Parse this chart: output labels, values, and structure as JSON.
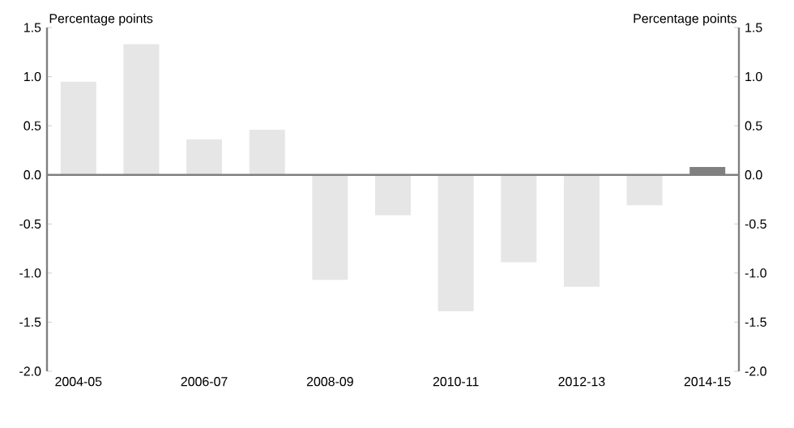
{
  "chart_data": {
    "type": "bar",
    "ylabel": "Percentage points",
    "y2label": "Percentage points",
    "categories": [
      "2004-05",
      null,
      "2006-07",
      null,
      "2008-09",
      null,
      "2010-11",
      null,
      "2012-13",
      null,
      "2014-15"
    ],
    "values": [
      0.95,
      1.33,
      0.36,
      0.46,
      -1.07,
      -0.41,
      -1.39,
      -0.89,
      -1.14,
      -0.31,
      0.08
    ],
    "colors": [
      "#e6e6e6",
      "#e6e6e6",
      "#e6e6e6",
      "#e6e6e6",
      "#e6e6e6",
      "#e6e6e6",
      "#e6e6e6",
      "#e6e6e6",
      "#e6e6e6",
      "#e6e6e6",
      "#808080"
    ],
    "ylim": [
      -2.0,
      1.5
    ],
    "yticks": [
      {
        "value": -2.0,
        "label": "-2.0"
      },
      -1.5,
      {
        "value": -1.0,
        "label": "-1.0"
      },
      -0.5,
      {
        "value": 0,
        "label": "0.0"
      },
      0.5,
      {
        "value": 1.0,
        "label": "1.0"
      },
      1.5
    ],
    "y2lim": [
      -2.0,
      1.5
    ],
    "y2ticks": [
      {
        "value": -2.0,
        "label": "-2.0"
      },
      -1.5,
      {
        "value": -1.0,
        "label": "-1.0"
      },
      -0.5,
      {
        "value": 0,
        "label": "0.0"
      },
      0.5,
      {
        "value": 1.0,
        "label": "1.0"
      },
      1.5
    ]
  }
}
